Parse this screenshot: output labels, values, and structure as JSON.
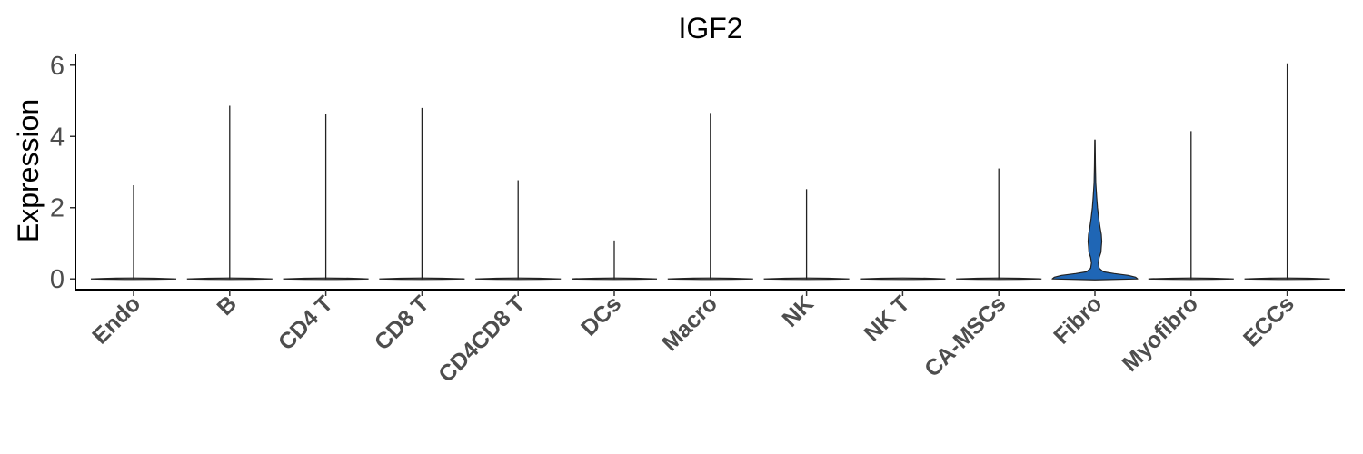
{
  "chart_data": {
    "type": "violin",
    "title": "IGF2",
    "ylabel": "Expression",
    "xlabel": "",
    "ylim": [
      -0.3,
      6.3
    ],
    "yticks": [
      0,
      2,
      4,
      6
    ],
    "categories": [
      "Endo",
      "B",
      "CD4 T",
      "CD8 T",
      "CD4CD8 T",
      "DCs",
      "Macro",
      "NK",
      "NK T",
      "CA-MSCs",
      "Fibro",
      "Myofibro",
      "ECCs"
    ],
    "max_values": [
      2.63,
      4.86,
      4.62,
      4.8,
      2.77,
      1.08,
      4.66,
      2.52,
      0,
      3.1,
      3.9,
      4.15,
      6.05
    ],
    "highlighted_category": "Fibro",
    "highlight_color": "#1f66b5",
    "default_fill": "#ffffff",
    "violin_profile_fibro": [
      [
        0,
        1.0
      ],
      [
        0.05,
        0.95
      ],
      [
        0.1,
        0.78
      ],
      [
        0.15,
        0.45
      ],
      [
        0.2,
        0.2
      ],
      [
        0.3,
        0.1
      ],
      [
        0.45,
        0.08
      ],
      [
        0.6,
        0.1
      ],
      [
        0.75,
        0.14
      ],
      [
        0.9,
        0.15
      ],
      [
        1.05,
        0.16
      ],
      [
        1.25,
        0.15
      ],
      [
        1.45,
        0.12
      ],
      [
        1.7,
        0.09
      ],
      [
        2.0,
        0.06
      ],
      [
        2.3,
        0.04
      ],
      [
        2.7,
        0.02
      ],
      [
        3.2,
        0.01
      ],
      [
        3.9,
        0.004
      ]
    ],
    "grid": false,
    "legend": "none"
  }
}
